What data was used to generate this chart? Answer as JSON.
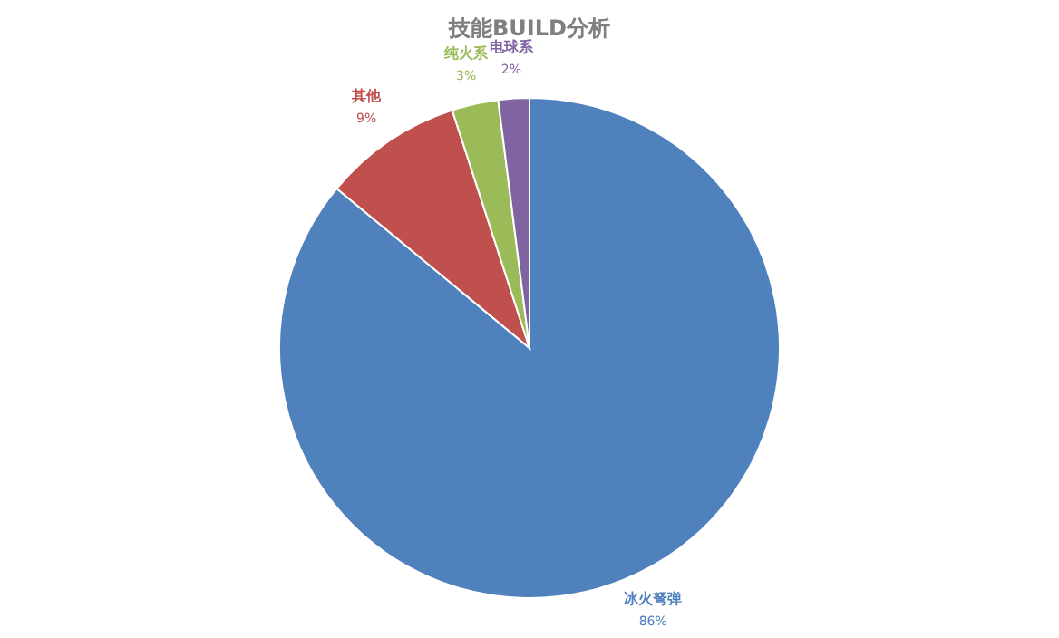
{
  "chart_data": {
    "type": "pie",
    "title": "技能BUILD分析",
    "categories": [
      "冰火弩弹",
      "其他",
      "纯火系",
      "电球系"
    ],
    "values": [
      86,
      9,
      3,
      2
    ],
    "value_labels": [
      "86%",
      "9%",
      "3%",
      "2%"
    ],
    "colors": [
      "#4f81bd",
      "#c0504d",
      "#9bbb59",
      "#8064a2"
    ],
    "legend": false
  }
}
